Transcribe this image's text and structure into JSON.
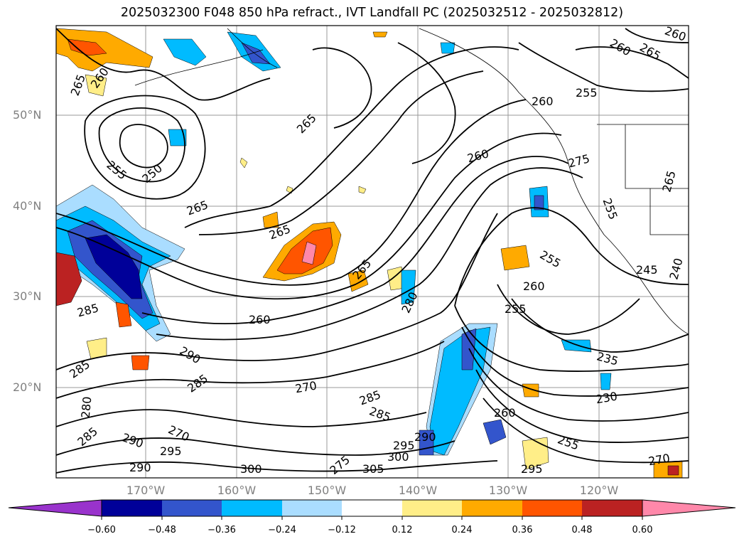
{
  "title": "2025032300 F048 850 hPa refract., IVT Landfall PC (2025032512 - 2025032812)",
  "lat_labels": [
    "50°N",
    "40°N",
    "30°N",
    "20°N"
  ],
  "lon_labels": [
    "170°W",
    "160°W",
    "150°W",
    "140°W",
    "130°W",
    "120°W"
  ],
  "colorbar": {
    "ticks": [
      "−0.60",
      "−0.48",
      "−0.36",
      "−0.24",
      "−0.12",
      "0.12",
      "0.24",
      "0.36",
      "0.48",
      "0.60"
    ],
    "colors": {
      "under": "#9933cc",
      "bins": [
        "#000099",
        "#3355cc",
        "#00bbff",
        "#aaddff",
        "#ffffff",
        "#ffee88",
        "#ffaa00",
        "#ff5500",
        "#bb2222",
        "#ff88aa"
      ]
    }
  },
  "contour_labels": [
    "265",
    "260",
    "260",
    "265",
    "260",
    "255",
    "250",
    "255",
    "265",
    "265",
    "265",
    "260",
    "265",
    "280",
    "285",
    "260",
    "285",
    "280",
    "285",
    "290",
    "285",
    "270",
    "285",
    "285",
    "290",
    "295",
    "290",
    "300",
    "305",
    "300",
    "295",
    "290",
    "295",
    "275",
    "270",
    "260",
    "255",
    "255",
    "260",
    "235",
    "230",
    "270",
    "275",
    "265",
    "240",
    "245",
    "260",
    "255",
    "255"
  ]
}
